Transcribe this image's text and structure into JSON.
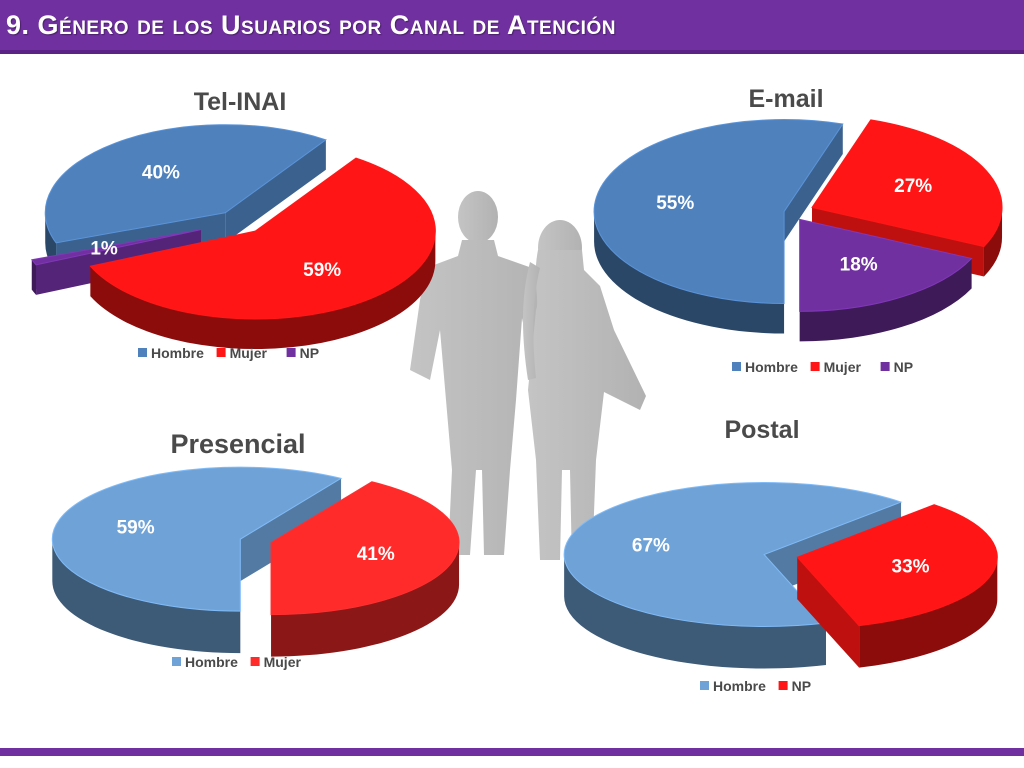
{
  "slide": {
    "title": "9. Género de los Usuarios por Canal de Atención"
  },
  "chart_data": [
    {
      "type": "pie",
      "title": "Tel-INAI",
      "labels": [
        "Hombre",
        "Mujer",
        "NP"
      ],
      "values": [
        40,
        59,
        1
      ],
      "value_labels": [
        "40%",
        "59%",
        "1%"
      ],
      "colors": [
        "#4f81bd",
        "#ff1515",
        "#7030a0"
      ],
      "legend_position": "bottom"
    },
    {
      "type": "pie",
      "title": "E-mail",
      "labels": [
        "Hombre",
        "Mujer",
        "NP"
      ],
      "values": [
        55,
        27,
        18
      ],
      "value_labels": [
        "55%",
        "27%",
        "18%"
      ],
      "colors": [
        "#4f81bd",
        "#ff1515",
        "#7030a0"
      ],
      "legend_position": "bottom"
    },
    {
      "type": "pie",
      "title": "Presencial",
      "labels": [
        "Hombre",
        "Mujer"
      ],
      "values": [
        59,
        41
      ],
      "value_labels": [
        "59%",
        "41%"
      ],
      "colors": [
        "#6fa3d8",
        "#ff2a2a"
      ],
      "legend_position": "bottom"
    },
    {
      "type": "pie",
      "title": "Postal",
      "labels": [
        "Hombre",
        "NP"
      ],
      "values": [
        67,
        33
      ],
      "value_labels": [
        "67%",
        "33%"
      ],
      "colors": [
        "#6fa3d8",
        "#ff1515"
      ],
      "legend_position": "bottom"
    }
  ]
}
